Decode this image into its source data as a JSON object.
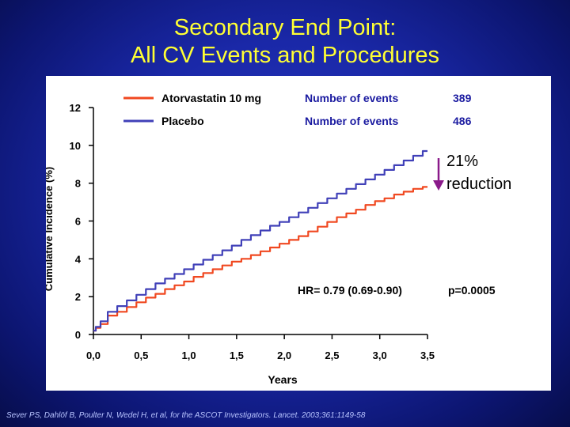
{
  "slide": {
    "title_line1": "Secondary End Point:",
    "title_line2": "All CV Events and Procedures",
    "citation": "Sever PS, Dahlöf B, Poulter N, Wedel H, et al, for the ASCOT Investigators. Lancet. 2003;361:1149-58"
  },
  "chart_data": {
    "type": "line",
    "xlabel": "Years",
    "ylabel": "Cumulative Incidence (%)",
    "xlim": [
      0,
      3.5
    ],
    "ylim": [
      0,
      12
    ],
    "x_ticks": [
      "0,0",
      "0,5",
      "1,0",
      "1,5",
      "2,0",
      "2,5",
      "3,0",
      "3,5"
    ],
    "y_ticks": [
      "0",
      "2",
      "4",
      "6",
      "8",
      "10",
      "12"
    ],
    "grid": false,
    "legend_position": "top",
    "series": [
      {
        "name": "Atorvastatin 10 mg",
        "color": "#f04820",
        "events_label": "Number of events",
        "events": "389",
        "x": [
          0,
          0.05,
          0.1,
          0.2,
          0.3,
          0.4,
          0.5,
          0.6,
          0.7,
          0.8,
          0.9,
          1.0,
          1.1,
          1.2,
          1.3,
          1.4,
          1.5,
          1.6,
          1.7,
          1.8,
          1.9,
          2.0,
          2.1,
          2.2,
          2.3,
          2.4,
          2.5,
          2.6,
          2.7,
          2.8,
          2.9,
          3.0,
          3.1,
          3.2,
          3.3,
          3.4,
          3.5
        ],
        "y": [
          0.2,
          0.35,
          0.55,
          1.0,
          1.2,
          1.45,
          1.7,
          1.95,
          2.15,
          2.4,
          2.6,
          2.8,
          3.05,
          3.25,
          3.45,
          3.65,
          3.85,
          4.0,
          4.2,
          4.4,
          4.6,
          4.8,
          5.0,
          5.2,
          5.45,
          5.7,
          5.95,
          6.2,
          6.4,
          6.6,
          6.85,
          7.05,
          7.2,
          7.4,
          7.55,
          7.7,
          7.8
        ]
      },
      {
        "name": "Placebo",
        "color": "#4040b8",
        "events_label": "Number of events",
        "events": "486",
        "x": [
          0,
          0.05,
          0.1,
          0.2,
          0.3,
          0.4,
          0.5,
          0.6,
          0.7,
          0.8,
          0.9,
          1.0,
          1.1,
          1.2,
          1.3,
          1.4,
          1.5,
          1.6,
          1.7,
          1.8,
          1.9,
          2.0,
          2.1,
          2.2,
          2.3,
          2.4,
          2.5,
          2.6,
          2.7,
          2.8,
          2.9,
          3.0,
          3.1,
          3.2,
          3.3,
          3.4,
          3.5
        ],
        "y": [
          0.2,
          0.4,
          0.7,
          1.2,
          1.5,
          1.8,
          2.1,
          2.4,
          2.7,
          2.95,
          3.2,
          3.45,
          3.7,
          3.95,
          4.2,
          4.45,
          4.7,
          5.0,
          5.25,
          5.5,
          5.75,
          5.95,
          6.2,
          6.45,
          6.7,
          6.95,
          7.2,
          7.45,
          7.7,
          7.95,
          8.2,
          8.45,
          8.7,
          8.95,
          9.2,
          9.45,
          9.7
        ]
      }
    ],
    "annotations": {
      "hr": "HR= 0.79 (0.69-0.90)",
      "p": "p=0.0005",
      "reduction_line1": "21%",
      "reduction_line2": "reduction",
      "reduction_arrow_color": "#8a1a8a"
    }
  }
}
